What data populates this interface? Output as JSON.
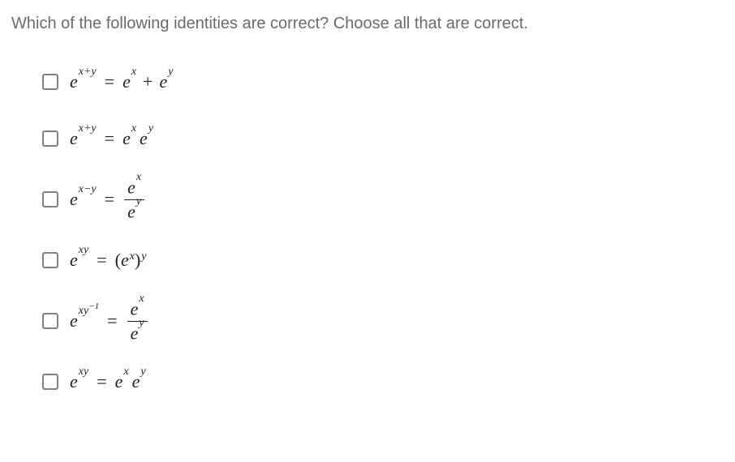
{
  "question": "Which of the following identities are correct?  Choose all that are correct.",
  "colors": {
    "question_text": "#6b6b6b",
    "formula_text": "#222222",
    "checkbox_border": "#808080",
    "background": "#ffffff",
    "fraction_bar": "#222222"
  },
  "typography": {
    "question_fontsize": 20,
    "formula_fontsize": 22,
    "superscript_fontsize": 14
  },
  "options": [
    {
      "lhs_base": "e",
      "lhs_exp": "x+y",
      "rhs_type": "sum",
      "rhs_a_base": "e",
      "rhs_a_exp": "x",
      "rhs_op": "+",
      "rhs_b_base": "e",
      "rhs_b_exp": "y"
    },
    {
      "lhs_base": "e",
      "lhs_exp": "x+y",
      "rhs_type": "product",
      "rhs_a_base": "e",
      "rhs_a_exp": "x",
      "rhs_b_base": "e",
      "rhs_b_exp": "y"
    },
    {
      "lhs_base": "e",
      "lhs_exp": "x−y",
      "rhs_type": "fraction",
      "num_base": "e",
      "num_exp": "x",
      "den_base": "e",
      "den_exp": "y"
    },
    {
      "lhs_base": "e",
      "lhs_exp": "xy",
      "rhs_type": "power",
      "inner_base": "e",
      "inner_exp": "x",
      "outer_exp": "y"
    },
    {
      "lhs_base": "e",
      "lhs_exp_prefix": "xy",
      "lhs_exp_suffix": "−1",
      "rhs_type": "fraction",
      "num_base": "e",
      "num_exp": "x",
      "den_base": "e",
      "den_exp": "y"
    },
    {
      "lhs_base": "e",
      "lhs_exp": "xy",
      "rhs_type": "product",
      "rhs_a_base": "e",
      "rhs_a_exp": "x",
      "rhs_b_base": "e",
      "rhs_b_exp": "y"
    }
  ],
  "eq_sign": "="
}
